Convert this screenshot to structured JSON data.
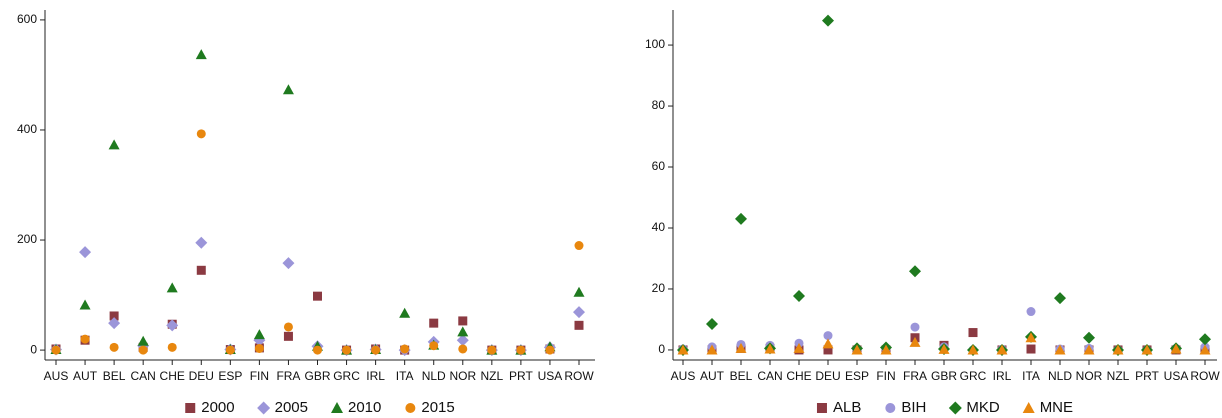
{
  "chart_data": [
    {
      "type": "scatter",
      "categories": [
        "AUS",
        "AUT",
        "BEL",
        "CAN",
        "CHE",
        "DEU",
        "ESP",
        "FIN",
        "FRA",
        "GBR",
        "GRC",
        "IRL",
        "ITA",
        "NLD",
        "NOR",
        "NZL",
        "PRT",
        "USA",
        "ROW"
      ],
      "ylim": [
        -18,
        618
      ],
      "yticks": [
        0,
        200,
        400,
        600
      ],
      "legend": "bottom",
      "series": [
        {
          "name": "2000",
          "color": "#8b3a42",
          "marker": "square",
          "values": [
            2,
            18,
            62,
            5,
            47,
            145,
            1,
            4,
            25,
            98,
            0,
            2,
            0,
            49,
            53,
            0,
            0,
            2,
            45
          ]
        },
        {
          "name": "2005",
          "color": "#9b95d9",
          "marker": "diamond",
          "values": [
            1,
            178,
            49,
            8,
            45,
            195,
            1,
            18,
            158,
            7,
            0,
            1,
            0,
            15,
            18,
            0,
            0,
            5,
            69
          ]
        },
        {
          "name": "2010",
          "color": "#1f7a1f",
          "marker": "triangle",
          "values": [
            1,
            82,
            373,
            16,
            113,
            537,
            1,
            28,
            473,
            7,
            0,
            1,
            67,
            9,
            33,
            0,
            0,
            6,
            105
          ]
        },
        {
          "name": "2015",
          "color": "#e8870e",
          "marker": "circle",
          "values": [
            0,
            20,
            5,
            0,
            5,
            393,
            0,
            3,
            42,
            0,
            0,
            0,
            2,
            8,
            2,
            0,
            0,
            0,
            190
          ]
        }
      ]
    },
    {
      "type": "scatter",
      "categories": [
        "AUS",
        "AUT",
        "BEL",
        "CAN",
        "CHE",
        "DEU",
        "ESP",
        "FIN",
        "FRA",
        "GBR",
        "GRC",
        "IRL",
        "ITA",
        "NLD",
        "NOR",
        "NZL",
        "PRT",
        "USA",
        "ROW"
      ],
      "ylim": [
        -3.3,
        111.5
      ],
      "yticks": [
        0,
        20,
        40,
        60,
        80,
        100
      ],
      "legend": "bottom",
      "series": [
        {
          "name": "ALB",
          "color": "#8b3a42",
          "marker": "square",
          "values": [
            0,
            0,
            0.5,
            0.5,
            0,
            0,
            0,
            0,
            4,
            1.5,
            5.7,
            0,
            0.3,
            0,
            0,
            0,
            0,
            0,
            0
          ]
        },
        {
          "name": "BIH",
          "color": "#9b95d9",
          "marker": "circle",
          "values": [
            0.3,
            1,
            1.8,
            1.5,
            2.2,
            4.7,
            0.3,
            0.5,
            7.5,
            1,
            0,
            0.2,
            12.6,
            0.3,
            0.5,
            0,
            0,
            0.5,
            1
          ]
        },
        {
          "name": "MKD",
          "color": "#1f7a1f",
          "marker": "diamond",
          "values": [
            0,
            8.5,
            43,
            0.5,
            17.7,
            108,
            0.5,
            0.8,
            25.8,
            0.3,
            0,
            0,
            4.3,
            17,
            4,
            0,
            0,
            0.5,
            3.5
          ]
        },
        {
          "name": "MNE",
          "color": "#e8870e",
          "marker": "triangle",
          "values": [
            0,
            0,
            0.5,
            0.3,
            0.5,
            2,
            0,
            0,
            2.5,
            0.2,
            0,
            0,
            4,
            0,
            0,
            0,
            0,
            0.3,
            0
          ]
        }
      ]
    }
  ]
}
